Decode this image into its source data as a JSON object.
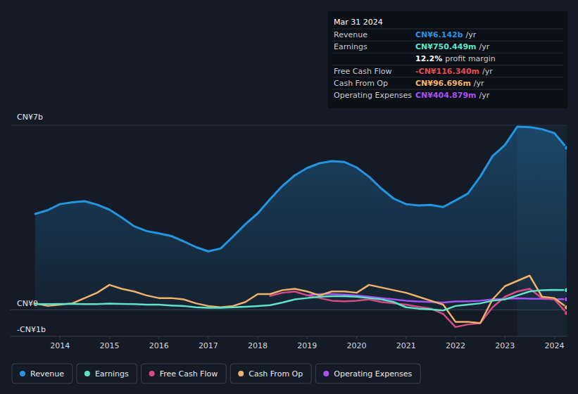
{
  "chart_data": {
    "type": "line",
    "x": [
      2013.5,
      2013.75,
      2014,
      2014.25,
      2014.5,
      2014.75,
      2015,
      2015.25,
      2015.5,
      2015.75,
      2016,
      2016.25,
      2016.5,
      2016.75,
      2017,
      2017.25,
      2017.5,
      2017.75,
      2018,
      2018.25,
      2018.5,
      2018.75,
      2019,
      2019.25,
      2019.5,
      2019.75,
      2020,
      2020.25,
      2020.5,
      2020.75,
      2021,
      2021.25,
      2021.5,
      2021.75,
      2022,
      2022.25,
      2022.5,
      2022.75,
      2023,
      2023.25,
      2023.5,
      2023.75,
      2024,
      2024.25
    ],
    "xlim": [
      2013,
      2024.25
    ],
    "xticks": [
      2014,
      2015,
      2016,
      2017,
      2018,
      2019,
      2020,
      2021,
      2022,
      2023,
      2024
    ],
    "ylim": [
      -1,
      7
    ],
    "yticks": [
      {
        "value": -1,
        "label": "-CN¥1b"
      },
      {
        "value": 0,
        "label": "CN¥0"
      },
      {
        "value": 7,
        "label": "CN¥7b"
      }
    ],
    "grid": true,
    "legend": "bottom-left",
    "shaded_x": [
      2023.25,
      2024.25
    ],
    "series": [
      {
        "name": "Revenue",
        "color": "#2394df",
        "type": "area",
        "values": [
          3.64,
          3.78,
          4.01,
          4.08,
          4.12,
          3.99,
          3.8,
          3.5,
          3.17,
          2.99,
          2.9,
          2.8,
          2.6,
          2.38,
          2.22,
          2.33,
          2.78,
          3.25,
          3.66,
          4.2,
          4.7,
          5.1,
          5.38,
          5.56,
          5.64,
          5.61,
          5.4,
          5.05,
          4.6,
          4.22,
          4.01,
          3.96,
          3.98,
          3.9,
          4.15,
          4.41,
          5.05,
          5.83,
          6.25,
          6.95,
          6.93,
          6.85,
          6.7,
          6.142
        ]
      },
      {
        "name": "Earnings",
        "color": "#5fe3c8",
        "type": "line",
        "values": [
          0.22,
          0.22,
          0.23,
          0.23,
          0.22,
          0.22,
          0.24,
          0.23,
          0.22,
          0.2,
          0.2,
          0.17,
          0.15,
          0.1,
          0.08,
          0.08,
          0.1,
          0.12,
          0.15,
          0.18,
          0.28,
          0.4,
          0.45,
          0.5,
          0.52,
          0.52,
          0.5,
          0.45,
          0.4,
          0.3,
          0.1,
          0.05,
          0.02,
          -0.02,
          0.15,
          0.2,
          0.25,
          0.35,
          0.4,
          0.55,
          0.7,
          0.75,
          0.76,
          0.750449
        ]
      },
      {
        "name": "Free Cash Flow",
        "color": "#d64b86",
        "type": "line",
        "values": [
          null,
          null,
          null,
          null,
          null,
          null,
          null,
          null,
          null,
          null,
          null,
          null,
          null,
          null,
          null,
          null,
          null,
          null,
          null,
          0.53,
          0.65,
          0.7,
          0.55,
          0.45,
          0.35,
          0.33,
          0.35,
          0.4,
          0.3,
          0.25,
          0.2,
          0.12,
          0.05,
          -0.15,
          -0.65,
          -0.55,
          -0.5,
          0.1,
          0.5,
          0.7,
          0.8,
          0.45,
          0.4,
          -0.11634
        ]
      },
      {
        "name": "Cash From Op",
        "color": "#f0b26b",
        "type": "line",
        "values": [
          0.25,
          0.15,
          0.2,
          0.25,
          0.45,
          0.65,
          0.95,
          0.8,
          0.7,
          0.55,
          0.45,
          0.45,
          0.4,
          0.25,
          0.15,
          0.1,
          0.15,
          0.3,
          0.6,
          0.6,
          0.75,
          0.8,
          0.7,
          0.55,
          0.7,
          0.7,
          0.65,
          0.95,
          0.85,
          0.75,
          0.65,
          0.5,
          0.35,
          0.2,
          -0.45,
          -0.45,
          -0.5,
          0.4,
          0.9,
          1.1,
          1.3,
          0.5,
          0.45,
          0.096696
        ]
      },
      {
        "name": "Operating Expenses",
        "color": "#a651f5",
        "type": "line",
        "values": [
          null,
          null,
          null,
          null,
          null,
          null,
          null,
          null,
          null,
          null,
          null,
          null,
          null,
          null,
          null,
          null,
          null,
          null,
          null,
          null,
          null,
          null,
          0.55,
          0.6,
          0.6,
          0.58,
          0.55,
          0.5,
          0.45,
          0.4,
          0.35,
          0.32,
          0.3,
          0.28,
          0.32,
          0.33,
          0.35,
          0.4,
          0.42,
          0.44,
          0.43,
          0.42,
          0.41,
          0.404879
        ]
      }
    ],
    "tooltip": {
      "title": "Mar 31 2024",
      "rows": [
        {
          "label": "Revenue",
          "value": "CN¥6.142b",
          "suffix": "/yr",
          "color": "#2394df"
        },
        {
          "label": "Earnings",
          "value": "CN¥750.449m",
          "suffix": "/yr",
          "color": "#5fe3c8"
        },
        {
          "value": "12.2%",
          "suffix": "profit margin",
          "color": "#ffffff"
        },
        {
          "label": "Free Cash Flow",
          "value": "-CN¥116.340m",
          "suffix": "/yr",
          "color": "#e8474f"
        },
        {
          "label": "Cash From Op",
          "value": "CN¥96.696m",
          "suffix": "/yr",
          "color": "#f0b26b"
        },
        {
          "label": "Operating Expenses",
          "value": "CN¥404.879m",
          "suffix": "/yr",
          "color": "#a651f5"
        }
      ]
    }
  }
}
